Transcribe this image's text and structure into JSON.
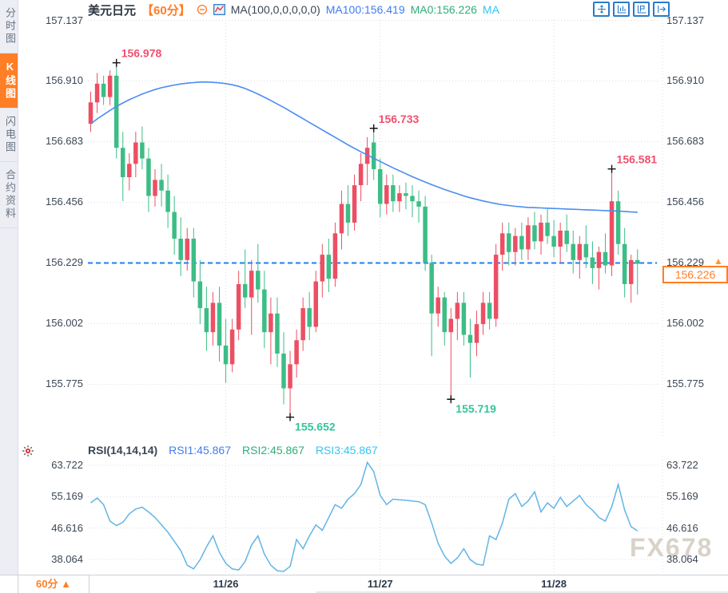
{
  "sidebar": {
    "items": [
      {
        "label": "分时图",
        "active": false
      },
      {
        "label": "K线图",
        "active": true
      },
      {
        "label": "闪电图",
        "active": false
      },
      {
        "label": "合约资料",
        "active": false
      }
    ]
  },
  "header": {
    "symbol": "美元日元",
    "period": "【60分】",
    "ma_formula": "MA(100,0,0,0,0,0)",
    "ma100": "MA100:156.419",
    "ma0": "MA0:156.226",
    "ma_suffix": "MA"
  },
  "toolbar_icons": [
    "move-crosshair",
    "axis-bars",
    "axis-flag",
    "pan-right"
  ],
  "price_marker": {
    "axis_label": "156.229",
    "arrow": "▲",
    "current": "156.226"
  },
  "rsi_header": {
    "formula": "RSI(14,14,14)",
    "rsi1": "RSI1:45.867",
    "rsi2": "RSI2:45.867",
    "rsi3": "RSI3:45.867"
  },
  "bottom": {
    "period_label": "60分 ▲"
  },
  "watermark": "FX678",
  "colors": {
    "up": "#ec4f63",
    "down": "#3dbd86",
    "up_label": "#f0506e",
    "down_label": "#35c49a",
    "ma_line": "#4a8df0",
    "rsi_line": "#63b4e4",
    "dashed_line": "#1e7ef7",
    "accent_orange": "#ff7e26",
    "axis_text": "#3a4654",
    "grid": "#d9dce1"
  },
  "chart_data": [
    {
      "type": "candlestick",
      "symbol": "美元日元",
      "interval": "60分",
      "y_axis_ticks": [
        157.137,
        156.91,
        156.683,
        156.456,
        156.229,
        156.002,
        155.775
      ],
      "y_range": [
        155.575,
        157.137
      ],
      "x_dates": [
        "11/26",
        "11/27",
        "11/28"
      ],
      "date_grid_indices": [
        21,
        45,
        72
      ],
      "dashed_line_price": 156.229,
      "last_price": 156.226,
      "ma100_last": 156.419,
      "annotations": [
        {
          "index": 4,
          "price": 156.978,
          "label": "156.978",
          "kind": "high"
        },
        {
          "index": 31,
          "price": 155.652,
          "label": "155.652",
          "kind": "low"
        },
        {
          "index": 44,
          "price": 156.733,
          "label": "156.733",
          "kind": "high"
        },
        {
          "index": 56,
          "price": 155.719,
          "label": "155.719",
          "kind": "low"
        },
        {
          "index": 81,
          "price": 156.581,
          "label": "156.581",
          "kind": "high"
        }
      ],
      "ma100": [
        156.75,
        156.768,
        156.784,
        156.8,
        156.815,
        156.828,
        156.84,
        156.851,
        156.861,
        156.87,
        156.878,
        156.885,
        156.89,
        156.895,
        156.899,
        156.902,
        156.904,
        156.906,
        156.906,
        156.905,
        156.903,
        156.9,
        156.896,
        156.89,
        156.882,
        156.872,
        156.861,
        156.849,
        156.837,
        156.824,
        156.811,
        156.797,
        156.783,
        156.769,
        156.755,
        156.741,
        156.727,
        156.713,
        156.699,
        156.685,
        156.671,
        156.658,
        156.645,
        156.633,
        156.621,
        156.609,
        156.597,
        156.585,
        156.574,
        156.563,
        156.552,
        156.542,
        156.532,
        156.522,
        156.513,
        156.504,
        156.496,
        156.488,
        156.48,
        156.473,
        156.467,
        156.461,
        156.456,
        156.451,
        156.447,
        156.444,
        156.441,
        156.439,
        156.437,
        156.436,
        156.435,
        156.434,
        156.433,
        156.432,
        156.431,
        156.43,
        156.429,
        156.428,
        156.427,
        156.426,
        156.425,
        156.424,
        156.423,
        156.422,
        156.42,
        156.419
      ],
      "candles": [
        [
          156.75,
          156.87,
          156.72,
          156.83
        ],
        [
          156.83,
          156.94,
          156.79,
          156.9
        ],
        [
          156.9,
          156.93,
          156.82,
          156.85
        ],
        [
          156.85,
          156.95,
          156.82,
          156.93
        ],
        [
          156.93,
          156.978,
          156.62,
          156.66
        ],
        [
          156.66,
          156.72,
          156.46,
          156.55
        ],
        [
          156.55,
          156.64,
          156.5,
          156.6
        ],
        [
          156.6,
          156.72,
          156.55,
          156.68
        ],
        [
          156.68,
          156.74,
          156.58,
          156.62
        ],
        [
          156.62,
          156.66,
          156.42,
          156.48
        ],
        [
          156.48,
          156.58,
          156.44,
          156.54
        ],
        [
          156.54,
          156.6,
          156.44,
          156.5
        ],
        [
          156.5,
          156.56,
          156.36,
          156.42
        ],
        [
          156.42,
          156.48,
          156.26,
          156.32
        ],
        [
          156.32,
          156.4,
          156.18,
          156.24
        ],
        [
          156.24,
          156.36,
          156.2,
          156.32
        ],
        [
          156.32,
          156.36,
          156.1,
          156.16
        ],
        [
          156.16,
          156.24,
          156.0,
          156.06
        ],
        [
          156.06,
          156.14,
          155.9,
          155.97
        ],
        [
          155.97,
          156.12,
          155.92,
          156.08
        ],
        [
          156.08,
          156.14,
          155.86,
          155.92
        ],
        [
          155.92,
          156.02,
          155.78,
          155.85
        ],
        [
          155.85,
          156.02,
          155.82,
          155.98
        ],
        [
          155.98,
          156.2,
          155.94,
          156.15
        ],
        [
          156.15,
          156.28,
          156.06,
          156.1
        ],
        [
          156.1,
          156.24,
          155.96,
          156.2
        ],
        [
          156.2,
          156.3,
          156.08,
          156.13
        ],
        [
          156.13,
          156.2,
          155.91,
          155.97
        ],
        [
          155.97,
          156.1,
          155.85,
          156.04
        ],
        [
          156.04,
          156.1,
          155.84,
          155.89
        ],
        [
          155.89,
          155.97,
          155.7,
          155.76
        ],
        [
          155.76,
          155.9,
          155.652,
          155.85
        ],
        [
          155.85,
          155.98,
          155.8,
          155.94
        ],
        [
          155.94,
          156.1,
          155.9,
          156.06
        ],
        [
          156.06,
          156.12,
          155.94,
          155.99
        ],
        [
          155.99,
          156.2,
          155.97,
          156.16
        ],
        [
          156.16,
          156.3,
          156.1,
          156.26
        ],
        [
          156.26,
          156.32,
          156.12,
          156.17
        ],
        [
          156.17,
          156.38,
          156.14,
          156.34
        ],
        [
          156.34,
          156.5,
          156.28,
          156.45
        ],
        [
          156.45,
          156.52,
          156.33,
          156.38
        ],
        [
          156.38,
          156.56,
          156.35,
          156.52
        ],
        [
          156.52,
          156.64,
          156.46,
          156.6
        ],
        [
          156.6,
          156.7,
          156.52,
          156.66
        ],
        [
          156.68,
          156.733,
          156.54,
          156.58
        ],
        [
          156.58,
          156.62,
          156.4,
          156.45
        ],
        [
          156.45,
          156.56,
          156.41,
          156.52
        ],
        [
          156.52,
          156.56,
          156.42,
          156.46
        ],
        [
          156.46,
          156.52,
          156.42,
          156.49
        ],
        [
          156.49,
          156.53,
          156.43,
          156.48
        ],
        [
          156.48,
          156.52,
          156.4,
          156.46
        ],
        [
          156.46,
          156.5,
          156.38,
          156.44
        ],
        [
          156.44,
          156.48,
          156.2,
          156.23
        ],
        [
          156.23,
          156.26,
          155.88,
          156.04
        ],
        [
          156.04,
          156.14,
          155.99,
          156.1
        ],
        [
          156.1,
          156.12,
          155.92,
          155.97
        ],
        [
          155.97,
          156.06,
          155.719,
          156.02
        ],
        [
          156.02,
          156.12,
          155.94,
          156.08
        ],
        [
          156.08,
          156.12,
          155.92,
          155.96
        ],
        [
          155.96,
          156.02,
          155.8,
          155.93
        ],
        [
          155.93,
          156.05,
          155.88,
          156.0
        ],
        [
          156.0,
          156.12,
          155.96,
          156.08
        ],
        [
          156.08,
          156.12,
          155.98,
          156.02
        ],
        [
          156.02,
          156.3,
          155.99,
          156.26
        ],
        [
          156.26,
          156.38,
          156.2,
          156.34
        ],
        [
          156.34,
          156.38,
          156.22,
          156.27
        ],
        [
          156.27,
          156.36,
          156.22,
          156.33
        ],
        [
          156.33,
          156.38,
          156.24,
          156.28
        ],
        [
          156.28,
          156.4,
          156.24,
          156.37
        ],
        [
          156.37,
          156.42,
          156.28,
          156.31
        ],
        [
          156.31,
          156.41,
          156.26,
          156.38
        ],
        [
          156.38,
          156.43,
          156.3,
          156.33
        ],
        [
          156.33,
          156.39,
          156.25,
          156.29
        ],
        [
          156.29,
          156.38,
          156.23,
          156.35
        ],
        [
          156.35,
          156.41,
          156.27,
          156.3
        ],
        [
          156.3,
          156.35,
          156.19,
          156.24
        ],
        [
          156.24,
          156.33,
          156.17,
          156.3
        ],
        [
          156.3,
          156.37,
          156.21,
          156.25
        ],
        [
          156.25,
          156.31,
          156.15,
          156.21
        ],
        [
          156.21,
          156.29,
          156.13,
          156.27
        ],
        [
          156.27,
          156.34,
          156.19,
          156.22
        ],
        [
          156.22,
          156.581,
          156.18,
          156.46
        ],
        [
          156.46,
          156.5,
          156.26,
          156.3
        ],
        [
          156.3,
          156.36,
          156.1,
          156.15
        ],
        [
          156.15,
          156.26,
          156.08,
          156.24
        ],
        [
          156.24,
          156.28,
          156.11,
          156.226
        ]
      ]
    },
    {
      "type": "line",
      "name": "RSI(14,14,14)",
      "y_axis_ticks": [
        63.722,
        55.169,
        46.616,
        38.064
      ],
      "current": 45.867,
      "values": [
        53.5,
        54.8,
        53.0,
        48.5,
        47.3,
        48.2,
        50.5,
        51.8,
        52.3,
        51.0,
        49.5,
        47.5,
        45.5,
        43.0,
        40.5,
        36.5,
        35.5,
        38.0,
        41.5,
        44.5,
        40.0,
        37.0,
        35.5,
        35.2,
        37.5,
        42.0,
        44.5,
        39.5,
        36.5,
        35.0,
        34.8,
        36.2,
        43.5,
        41.0,
        44.5,
        47.5,
        46.0,
        49.5,
        53.0,
        52.0,
        54.5,
        56.0,
        58.5,
        64.5,
        62.0,
        55.5,
        53.0,
        54.5,
        54.3,
        54.2,
        54.0,
        53.8,
        53.0,
        48.0,
        42.5,
        39.0,
        37.0,
        38.5,
        41.0,
        38.0,
        36.8,
        36.5,
        44.5,
        43.5,
        48.0,
        54.5,
        56.0,
        52.5,
        54.0,
        56.5,
        51.0,
        53.5,
        52.0,
        55.0,
        52.5,
        54.0,
        55.5,
        53.0,
        51.5,
        49.5,
        48.5,
        52.5,
        58.5,
        51.5,
        47.0,
        45.867
      ]
    }
  ]
}
